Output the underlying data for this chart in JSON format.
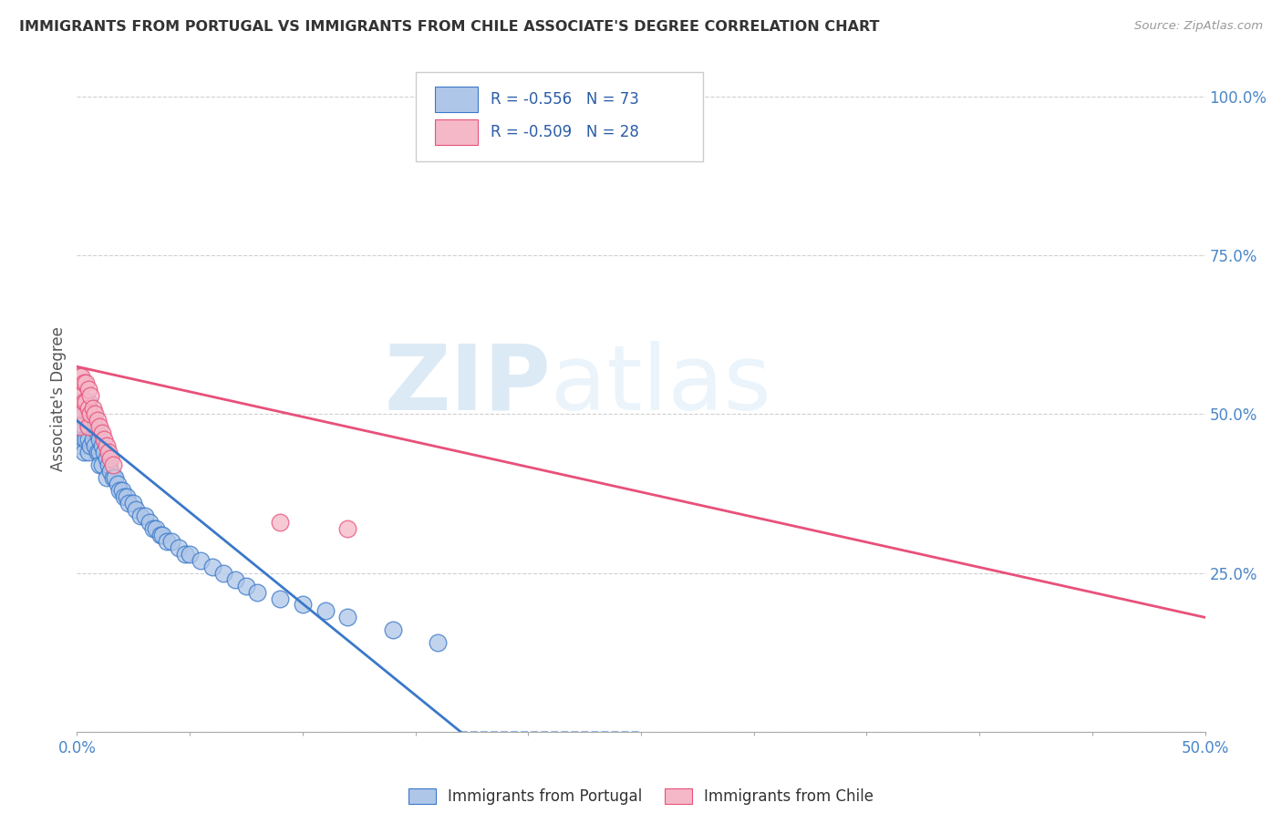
{
  "title": "IMMIGRANTS FROM PORTUGAL VS IMMIGRANTS FROM CHILE ASSOCIATE'S DEGREE CORRELATION CHART",
  "source": "Source: ZipAtlas.com",
  "ylabel": "Associate's Degree",
  "watermark_zip": "ZIP",
  "watermark_atlas": "atlas",
  "xlim": [
    0.0,
    0.5
  ],
  "ylim": [
    0.0,
    1.05
  ],
  "yticks": [
    0.0,
    0.25,
    0.5,
    0.75,
    1.0
  ],
  "ytick_labels": [
    "",
    "25.0%",
    "50.0%",
    "75.0%",
    "100.0%"
  ],
  "legend_r1": "-0.556",
  "legend_n1": "73",
  "legend_r2": "-0.509",
  "legend_n2": "28",
  "color_portugal": "#aec6e8",
  "color_chile": "#f5b8c8",
  "color_portugal_line": "#3a78c9",
  "color_chile_line": "#e8507a",
  "label_portugal": "Immigrants from Portugal",
  "label_chile": "Immigrants from Chile",
  "portugal_x": [
    0.001,
    0.001,
    0.001,
    0.002,
    0.002,
    0.002,
    0.002,
    0.003,
    0.003,
    0.003,
    0.003,
    0.003,
    0.004,
    0.004,
    0.004,
    0.005,
    0.005,
    0.005,
    0.005,
    0.005,
    0.006,
    0.006,
    0.006,
    0.007,
    0.007,
    0.008,
    0.008,
    0.009,
    0.009,
    0.01,
    0.01,
    0.01,
    0.011,
    0.011,
    0.012,
    0.013,
    0.013,
    0.014,
    0.015,
    0.016,
    0.017,
    0.018,
    0.019,
    0.02,
    0.021,
    0.022,
    0.023,
    0.025,
    0.026,
    0.028,
    0.03,
    0.032,
    0.034,
    0.035,
    0.037,
    0.038,
    0.04,
    0.042,
    0.045,
    0.048,
    0.05,
    0.055,
    0.06,
    0.065,
    0.07,
    0.075,
    0.08,
    0.09,
    0.1,
    0.11,
    0.12,
    0.14,
    0.16
  ],
  "portugal_y": [
    0.52,
    0.5,
    0.48,
    0.51,
    0.49,
    0.47,
    0.45,
    0.52,
    0.5,
    0.48,
    0.46,
    0.44,
    0.51,
    0.49,
    0.46,
    0.52,
    0.5,
    0.48,
    0.46,
    0.44,
    0.5,
    0.48,
    0.45,
    0.49,
    0.46,
    0.48,
    0.45,
    0.47,
    0.44,
    0.46,
    0.44,
    0.42,
    0.45,
    0.42,
    0.44,
    0.43,
    0.4,
    0.42,
    0.41,
    0.4,
    0.4,
    0.39,
    0.38,
    0.38,
    0.37,
    0.37,
    0.36,
    0.36,
    0.35,
    0.34,
    0.34,
    0.33,
    0.32,
    0.32,
    0.31,
    0.31,
    0.3,
    0.3,
    0.29,
    0.28,
    0.28,
    0.27,
    0.26,
    0.25,
    0.24,
    0.23,
    0.22,
    0.21,
    0.2,
    0.19,
    0.18,
    0.16,
    0.14
  ],
  "chile_x": [
    0.001,
    0.001,
    0.001,
    0.001,
    0.002,
    0.002,
    0.002,
    0.003,
    0.003,
    0.004,
    0.004,
    0.005,
    0.005,
    0.005,
    0.006,
    0.006,
    0.007,
    0.008,
    0.009,
    0.01,
    0.011,
    0.012,
    0.013,
    0.014,
    0.015,
    0.016,
    0.09,
    0.12
  ],
  "chile_y": [
    0.56,
    0.54,
    0.51,
    0.48,
    0.56,
    0.53,
    0.5,
    0.55,
    0.52,
    0.55,
    0.52,
    0.54,
    0.51,
    0.48,
    0.53,
    0.5,
    0.51,
    0.5,
    0.49,
    0.48,
    0.47,
    0.46,
    0.45,
    0.44,
    0.43,
    0.42,
    0.33,
    0.32
  ],
  "chile_line_x0": 0.0,
  "chile_line_y0": 0.575,
  "chile_line_x1": 0.5,
  "chile_line_y1": 0.18,
  "port_line_x0": 0.0,
  "port_line_y0": 0.49,
  "port_line_x1": 0.17,
  "port_line_y1": 0.0
}
